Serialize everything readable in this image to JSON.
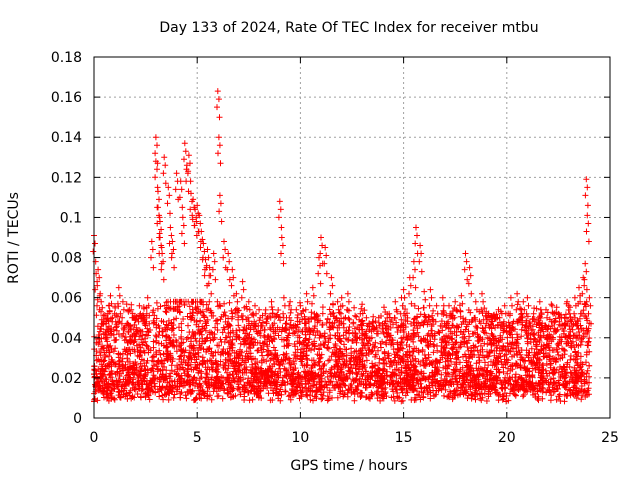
{
  "chart_data": {
    "type": "scatter",
    "title": "Day 133 of 2024, Rate Of TEC Index for receiver mtbu",
    "xlabel": "GPS time / hours",
    "ylabel": "ROTI / TECUs",
    "xlim": [
      0,
      25
    ],
    "ylim": [
      0,
      0.18
    ],
    "xticks": [
      "0",
      "5",
      "10",
      "15",
      "20",
      "25"
    ],
    "yticks": [
      "0",
      "0.02",
      "0.04",
      "0.06",
      "0.08",
      "0.1",
      "0.12",
      "0.14",
      "0.16",
      "0.18"
    ],
    "grid": true,
    "marker": "+",
    "color": "#ff0000",
    "series": [
      {
        "x": [
          0.0,
          0.1,
          0.2,
          0.3,
          0.4,
          0.6,
          0.8,
          1.0,
          1.2,
          1.4,
          1.6,
          1.8,
          2.0,
          2.2,
          2.4,
          2.6,
          2.8,
          3.0,
          3.0,
          3.1,
          3.1,
          3.2,
          3.2,
          3.3,
          3.4,
          3.6,
          3.7,
          3.8,
          4.0,
          4.2,
          4.3,
          4.4,
          4.5,
          4.6,
          4.7,
          4.8,
          4.9,
          5.0,
          5.1,
          5.2,
          5.3,
          5.4,
          5.5,
          5.6,
          5.8,
          6.0,
          6.05,
          6.1,
          6.3,
          6.5,
          6.7,
          6.9,
          7.2,
          7.5,
          7.8,
          8.0,
          8.3,
          8.6,
          9.0,
          9.1,
          9.2,
          9.5,
          9.8,
          10.0,
          10.3,
          10.6,
          10.9,
          11.0,
          11.2,
          11.5,
          11.8,
          12.0,
          12.3,
          12.6,
          12.9,
          13.2,
          13.5,
          13.8,
          14.0,
          14.3,
          14.6,
          14.9,
          15.0,
          15.3,
          15.5,
          15.6,
          15.8,
          16.0,
          16.3,
          16.6,
          16.9,
          17.2,
          17.5,
          17.8,
          18.0,
          18.2,
          18.5,
          18.8,
          19.0,
          19.3,
          19.6,
          19.9,
          20.2,
          20.5,
          20.8,
          21.0,
          21.3,
          21.6,
          21.9,
          22.2,
          22.5,
          22.8,
          23.0,
          23.3,
          23.5,
          23.7,
          23.8,
          23.85,
          23.9,
          24.0
        ],
        "y": [
          0.091,
          0.072,
          0.074,
          0.062,
          0.055,
          0.048,
          0.061,
          0.052,
          0.065,
          0.058,
          0.047,
          0.054,
          0.049,
          0.056,
          0.051,
          0.06,
          0.088,
          0.14,
          0.128,
          0.113,
          0.105,
          0.098,
          0.09,
          0.082,
          0.13,
          0.115,
          0.095,
          0.088,
          0.122,
          0.118,
          0.1,
          0.137,
          0.126,
          0.131,
          0.112,
          0.109,
          0.104,
          0.106,
          0.101,
          0.093,
          0.087,
          0.079,
          0.084,
          0.075,
          0.082,
          0.163,
          0.14,
          0.111,
          0.088,
          0.082,
          0.074,
          0.062,
          0.068,
          0.058,
          0.056,
          0.054,
          0.052,
          0.058,
          0.108,
          0.09,
          0.06,
          0.058,
          0.054,
          0.056,
          0.062,
          0.065,
          0.08,
          0.09,
          0.085,
          0.07,
          0.058,
          0.06,
          0.062,
          0.055,
          0.052,
          0.05,
          0.048,
          0.05,
          0.046,
          0.052,
          0.058,
          0.06,
          0.064,
          0.07,
          0.078,
          0.095,
          0.086,
          0.063,
          0.064,
          0.056,
          0.06,
          0.056,
          0.058,
          0.061,
          0.082,
          0.075,
          0.058,
          0.062,
          0.053,
          0.05,
          0.054,
          0.056,
          0.06,
          0.062,
          0.058,
          0.06,
          0.052,
          0.058,
          0.054,
          0.056,
          0.052,
          0.05,
          0.056,
          0.06,
          0.065,
          0.07,
          0.077,
          0.119,
          0.101,
          0.06
        ]
      }
    ],
    "noise": {
      "x_range": [
        0,
        24
      ],
      "base": 0.018,
      "spread": 0.022,
      "count": 4200
    }
  }
}
